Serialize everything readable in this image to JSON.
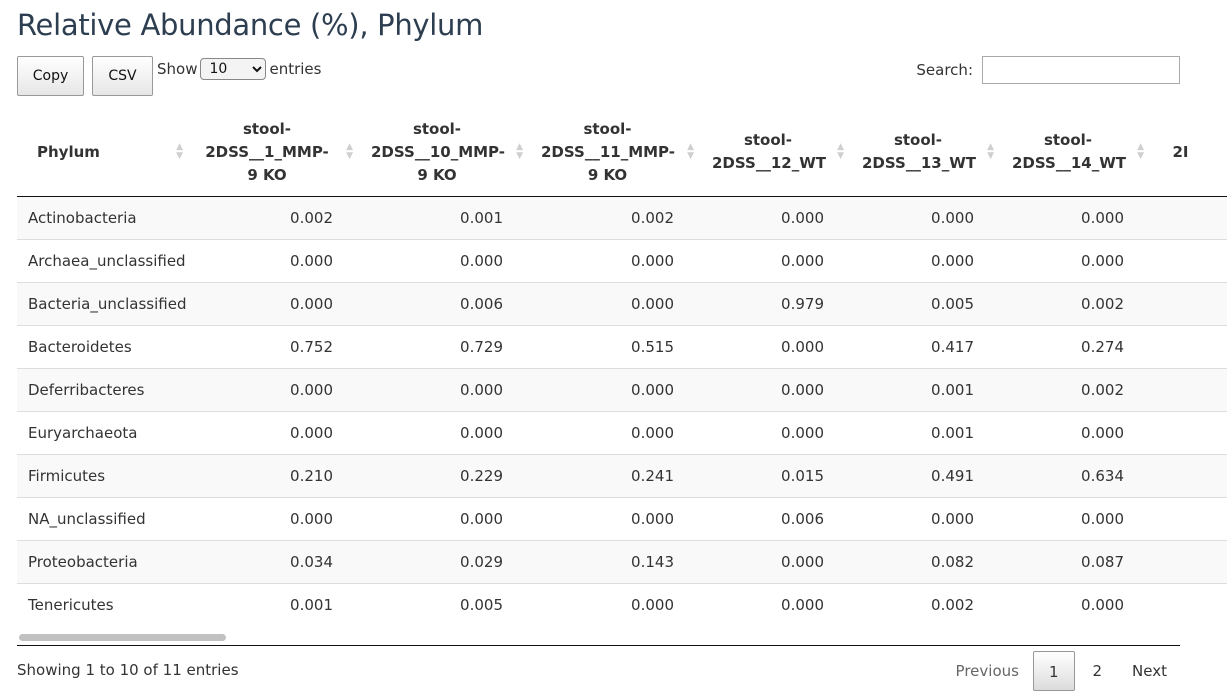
{
  "page": {
    "title": "Relative Abundance (%), Phylum"
  },
  "controls": {
    "copy_label": "Copy",
    "csv_label": "CSV",
    "show_label": "Show",
    "length_value": "10",
    "entries_label": "entries",
    "search_label": "Search:",
    "search_value": ""
  },
  "table": {
    "columns": [
      "Phylum",
      "stool-2DSS__1_MMP-9 KO",
      "stool-2DSS__10_MMP-9 KO",
      "stool-2DSS__11_MMP-9 KO",
      "stool-2DSS__12_WT",
      "stool-2DSS__13_WT",
      "stool-2DSS__14_WT",
      "2I"
    ],
    "rows": [
      {
        "phylum": "Actinobacteria",
        "values": [
          "0.002",
          "0.001",
          "0.002",
          "0.000",
          "0.000",
          "0.000"
        ]
      },
      {
        "phylum": "Archaea_unclassified",
        "values": [
          "0.000",
          "0.000",
          "0.000",
          "0.000",
          "0.000",
          "0.000"
        ]
      },
      {
        "phylum": "Bacteria_unclassified",
        "values": [
          "0.000",
          "0.006",
          "0.000",
          "0.979",
          "0.005",
          "0.002"
        ]
      },
      {
        "phylum": "Bacteroidetes",
        "values": [
          "0.752",
          "0.729",
          "0.515",
          "0.000",
          "0.417",
          "0.274"
        ]
      },
      {
        "phylum": "Deferribacteres",
        "values": [
          "0.000",
          "0.000",
          "0.000",
          "0.000",
          "0.001",
          "0.002"
        ]
      },
      {
        "phylum": "Euryarchaeota",
        "values": [
          "0.000",
          "0.000",
          "0.000",
          "0.000",
          "0.001",
          "0.000"
        ]
      },
      {
        "phylum": "Firmicutes",
        "values": [
          "0.210",
          "0.229",
          "0.241",
          "0.015",
          "0.491",
          "0.634"
        ]
      },
      {
        "phylum": "NA_unclassified",
        "values": [
          "0.000",
          "0.000",
          "0.000",
          "0.006",
          "0.000",
          "0.000"
        ]
      },
      {
        "phylum": "Proteobacteria",
        "values": [
          "0.034",
          "0.029",
          "0.143",
          "0.000",
          "0.082",
          "0.087"
        ]
      },
      {
        "phylum": "Tenericutes",
        "values": [
          "0.001",
          "0.005",
          "0.000",
          "0.000",
          "0.002",
          "0.000"
        ]
      }
    ]
  },
  "footer": {
    "info": "Showing 1 to 10 of 11 entries",
    "previous_label": "Previous",
    "pages": [
      "1",
      "2"
    ],
    "current_page": "1",
    "next_label": "Next"
  }
}
